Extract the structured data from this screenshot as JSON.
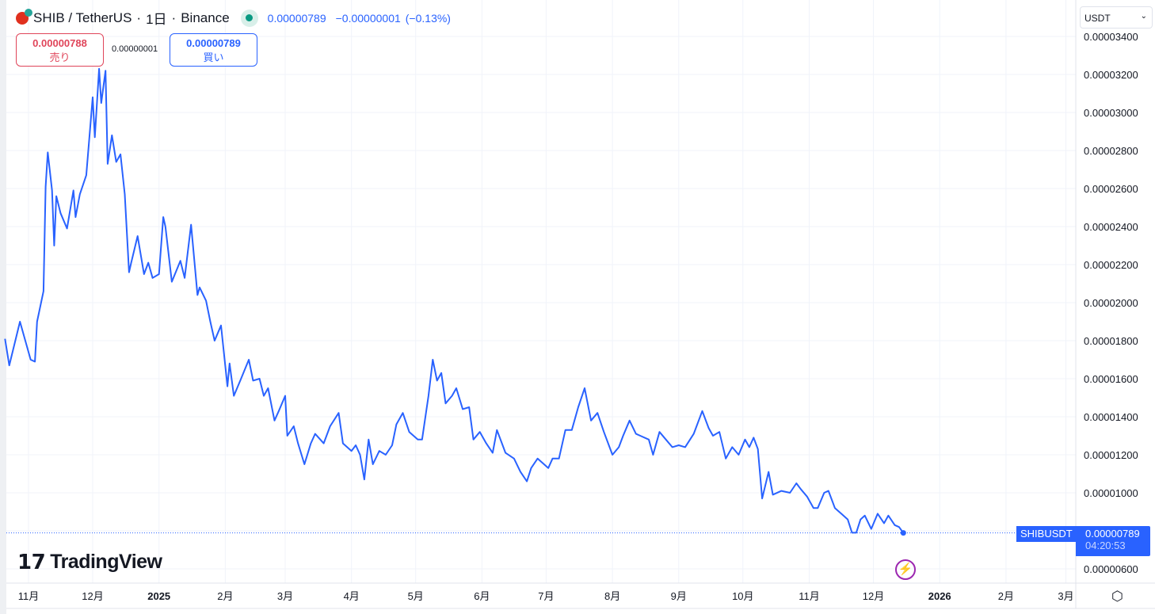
{
  "header": {
    "symbol": "SHIB / TetherUS",
    "interval": "1日",
    "exchange": "Binance",
    "sep": "·",
    "last": "0.00000789",
    "change": "−0.00000001",
    "change_pct": "(−0.13%)"
  },
  "trade": {
    "sell_price": "0.00000788",
    "sell_label": "売り",
    "spread": "0.00000001",
    "buy_price": "0.00000789",
    "buy_label": "買い"
  },
  "currency": "USDT",
  "price_label": {
    "symbol": "SHIBUSDT",
    "price": "0.00000789",
    "countdown": "04:20:53"
  },
  "logo": "TradingView",
  "colors": {
    "line": "#2962ff",
    "sell": "#e0455a",
    "buy": "#2962ff",
    "alert": "#9c27b0"
  },
  "icons": [
    "currency-chevron-icon",
    "lightning-alert-icon",
    "settings-icon",
    "shib-logo-icon"
  ],
  "chart_data": {
    "type": "line",
    "y_ticks": [
      "0.00003400",
      "0.00003200",
      "0.00003000",
      "0.00002800",
      "0.00002600",
      "0.00002400",
      "0.00002200",
      "0.00002000",
      "0.00001800",
      "0.00001600",
      "0.00001400",
      "0.00001200",
      "0.00001000",
      "0.00000600"
    ],
    "y_tick_values": [
      34,
      32,
      30,
      28,
      26,
      24,
      22,
      20,
      18,
      16,
      14,
      12,
      10,
      6
    ],
    "x_ticks": [
      "11月",
      "12月",
      "2025",
      "2月",
      "3月",
      "4月",
      "5月",
      "6月",
      "7月",
      "8月",
      "9月",
      "10月",
      "11月",
      "12月",
      "2026",
      "2月",
      "3月"
    ],
    "x_tick_dates": [
      "2024-11-01",
      "2024-12-01",
      "2025-01-01",
      "2025-02-01",
      "2025-03-01",
      "2025-04-01",
      "2025-05-01",
      "2025-06-01",
      "2025-07-01",
      "2025-08-01",
      "2025-09-01",
      "2025-10-01",
      "2025-11-01",
      "2025-12-01",
      "2026-01-01",
      "2026-02-01",
      "2026-03-01"
    ],
    "grid": true,
    "series": [
      {
        "points": [
          [
            "2024-10-21",
            1.81e-05
          ],
          [
            "2024-10-23",
            1.67e-05
          ],
          [
            "2024-10-28",
            1.9e-05
          ],
          [
            "2024-11-02",
            1.7e-05
          ],
          [
            "2024-11-04",
            1.69e-05
          ],
          [
            "2024-11-05",
            1.9e-05
          ],
          [
            "2024-11-08",
            2.06e-05
          ],
          [
            "2024-11-09",
            2.61e-05
          ],
          [
            "2024-11-10",
            2.79e-05
          ],
          [
            "2024-11-12",
            2.59e-05
          ],
          [
            "2024-11-13",
            2.3e-05
          ],
          [
            "2024-11-14",
            2.56e-05
          ],
          [
            "2024-11-16",
            2.47e-05
          ],
          [
            "2024-11-19",
            2.39e-05
          ],
          [
            "2024-11-22",
            2.59e-05
          ],
          [
            "2024-11-23",
            2.45e-05
          ],
          [
            "2024-11-25",
            2.57e-05
          ],
          [
            "2024-11-28",
            2.67e-05
          ],
          [
            "2024-12-01",
            3.08e-05
          ],
          [
            "2024-12-02",
            2.87e-05
          ],
          [
            "2024-12-04",
            3.23e-05
          ],
          [
            "2024-12-05",
            3.05e-05
          ],
          [
            "2024-12-07",
            3.22e-05
          ],
          [
            "2024-12-08",
            2.73e-05
          ],
          [
            "2024-12-10",
            2.88e-05
          ],
          [
            "2024-12-12",
            2.74e-05
          ],
          [
            "2024-12-14",
            2.78e-05
          ],
          [
            "2024-12-16",
            2.57e-05
          ],
          [
            "2024-12-18",
            2.16e-05
          ],
          [
            "2024-12-19",
            2.21e-05
          ],
          [
            "2024-12-22",
            2.35e-05
          ],
          [
            "2024-12-25",
            2.15e-05
          ],
          [
            "2024-12-27",
            2.21e-05
          ],
          [
            "2024-12-29",
            2.13e-05
          ],
          [
            "2025-01-01",
            2.15e-05
          ],
          [
            "2025-01-03",
            2.45e-05
          ],
          [
            "2025-01-04",
            2.4e-05
          ],
          [
            "2025-01-07",
            2.11e-05
          ],
          [
            "2025-01-11",
            2.22e-05
          ],
          [
            "2025-01-13",
            2.13e-05
          ],
          [
            "2025-01-16",
            2.41e-05
          ],
          [
            "2025-01-19",
            2.04e-05
          ],
          [
            "2025-01-20",
            2.08e-05
          ],
          [
            "2025-01-23",
            2.01e-05
          ],
          [
            "2025-01-25",
            1.9e-05
          ],
          [
            "2025-01-27",
            1.8e-05
          ],
          [
            "2025-01-30",
            1.88e-05
          ],
          [
            "2025-02-02",
            1.56e-05
          ],
          [
            "2025-02-03",
            1.68e-05
          ],
          [
            "2025-02-05",
            1.51e-05
          ],
          [
            "2025-02-08",
            1.59e-05
          ],
          [
            "2025-02-12",
            1.7e-05
          ],
          [
            "2025-02-14",
            1.59e-05
          ],
          [
            "2025-02-17",
            1.6e-05
          ],
          [
            "2025-02-19",
            1.51e-05
          ],
          [
            "2025-02-21",
            1.55e-05
          ],
          [
            "2025-02-24",
            1.38e-05
          ],
          [
            "2025-02-26",
            1.43e-05
          ],
          [
            "2025-03-01",
            1.51e-05
          ],
          [
            "2025-03-02",
            1.3e-05
          ],
          [
            "2025-03-05",
            1.35e-05
          ],
          [
            "2025-03-07",
            1.26e-05
          ],
          [
            "2025-03-10",
            1.15e-05
          ],
          [
            "2025-03-13",
            1.26e-05
          ],
          [
            "2025-03-15",
            1.31e-05
          ],
          [
            "2025-03-19",
            1.26e-05
          ],
          [
            "2025-03-22",
            1.35e-05
          ],
          [
            "2025-03-26",
            1.42e-05
          ],
          [
            "2025-03-28",
            1.26e-05
          ],
          [
            "2025-04-01",
            1.22e-05
          ],
          [
            "2025-04-03",
            1.25e-05
          ],
          [
            "2025-04-05",
            1.2e-05
          ],
          [
            "2025-04-07",
            1.07e-05
          ],
          [
            "2025-04-09",
            1.28e-05
          ],
          [
            "2025-04-11",
            1.15e-05
          ],
          [
            "2025-04-14",
            1.22e-05
          ],
          [
            "2025-04-17",
            1.2e-05
          ],
          [
            "2025-04-20",
            1.25e-05
          ],
          [
            "2025-04-22",
            1.36e-05
          ],
          [
            "2025-04-25",
            1.42e-05
          ],
          [
            "2025-04-28",
            1.32e-05
          ],
          [
            "2025-05-02",
            1.28e-05
          ],
          [
            "2025-05-04",
            1.28e-05
          ],
          [
            "2025-05-07",
            1.51e-05
          ],
          [
            "2025-05-09",
            1.7e-05
          ],
          [
            "2025-05-11",
            1.59e-05
          ],
          [
            "2025-05-13",
            1.63e-05
          ],
          [
            "2025-05-15",
            1.47e-05
          ],
          [
            "2025-05-18",
            1.51e-05
          ],
          [
            "2025-05-20",
            1.55e-05
          ],
          [
            "2025-05-23",
            1.44e-05
          ],
          [
            "2025-05-26",
            1.45e-05
          ],
          [
            "2025-05-28",
            1.28e-05
          ],
          [
            "2025-05-31",
            1.32e-05
          ],
          [
            "2025-06-03",
            1.26e-05
          ],
          [
            "2025-06-06",
            1.21e-05
          ],
          [
            "2025-06-08",
            1.33e-05
          ],
          [
            "2025-06-12",
            1.21e-05
          ],
          [
            "2025-06-16",
            1.18e-05
          ],
          [
            "2025-06-19",
            1.11e-05
          ],
          [
            "2025-06-22",
            1.06e-05
          ],
          [
            "2025-06-24",
            1.13e-05
          ],
          [
            "2025-06-27",
            1.18e-05
          ],
          [
            "2025-07-02",
            1.13e-05
          ],
          [
            "2025-07-04",
            1.18e-05
          ],
          [
            "2025-07-07",
            1.18e-05
          ],
          [
            "2025-07-10",
            1.33e-05
          ],
          [
            "2025-07-13",
            1.33e-05
          ],
          [
            "2025-07-16",
            1.45e-05
          ],
          [
            "2025-07-19",
            1.55e-05
          ],
          [
            "2025-07-22",
            1.38e-05
          ],
          [
            "2025-07-25",
            1.42e-05
          ],
          [
            "2025-07-28",
            1.32e-05
          ],
          [
            "2025-08-01",
            1.2e-05
          ],
          [
            "2025-08-04",
            1.24e-05
          ],
          [
            "2025-08-06",
            1.3e-05
          ],
          [
            "2025-08-09",
            1.38e-05
          ],
          [
            "2025-08-12",
            1.31e-05
          ],
          [
            "2025-08-14",
            1.3e-05
          ],
          [
            "2025-08-18",
            1.28e-05
          ],
          [
            "2025-08-20",
            1.2e-05
          ],
          [
            "2025-08-23",
            1.32e-05
          ],
          [
            "2025-08-26",
            1.28e-05
          ],
          [
            "2025-08-29",
            1.24e-05
          ],
          [
            "2025-09-01",
            1.25e-05
          ],
          [
            "2025-09-04",
            1.24e-05
          ],
          [
            "2025-09-08",
            1.31e-05
          ],
          [
            "2025-09-12",
            1.43e-05
          ],
          [
            "2025-09-15",
            1.34e-05
          ],
          [
            "2025-09-17",
            1.3e-05
          ],
          [
            "2025-09-20",
            1.32e-05
          ],
          [
            "2025-09-23",
            1.18e-05
          ],
          [
            "2025-09-26",
            1.24e-05
          ],
          [
            "2025-09-29",
            1.2e-05
          ],
          [
            "2025-10-02",
            1.28e-05
          ],
          [
            "2025-10-04",
            1.24e-05
          ],
          [
            "2025-10-06",
            1.29e-05
          ],
          [
            "2025-10-08",
            1.23e-05
          ],
          [
            "2025-10-10",
            9.7e-06
          ],
          [
            "2025-10-13",
            1.11e-05
          ],
          [
            "2025-10-15",
            9.9e-06
          ],
          [
            "2025-10-19",
            1.01e-05
          ],
          [
            "2025-10-23",
            1e-05
          ],
          [
            "2025-10-26",
            1.05e-05
          ],
          [
            "2025-10-28",
            1.02e-05
          ],
          [
            "2025-10-31",
            9.8e-06
          ],
          [
            "2025-11-03",
            9.2e-06
          ],
          [
            "2025-11-05",
            9.2e-06
          ],
          [
            "2025-11-08",
            1e-05
          ],
          [
            "2025-11-10",
            1.01e-05
          ],
          [
            "2025-11-13",
            9.2e-06
          ],
          [
            "2025-11-16",
            8.9e-06
          ],
          [
            "2025-11-19",
            8.6e-06
          ],
          [
            "2025-11-21",
            7.9e-06
          ],
          [
            "2025-11-23",
            7.9e-06
          ],
          [
            "2025-11-25",
            8.6e-06
          ],
          [
            "2025-11-27",
            8.8e-06
          ],
          [
            "2025-11-30",
            8.1e-06
          ],
          [
            "2025-12-03",
            8.9e-06
          ],
          [
            "2025-12-06",
            8.4e-06
          ],
          [
            "2025-12-08",
            8.8e-06
          ],
          [
            "2025-12-11",
            8.3e-06
          ],
          [
            "2025-12-13",
            8.2e-06
          ],
          [
            "2025-12-15",
            7.89e-06
          ]
        ]
      }
    ]
  }
}
